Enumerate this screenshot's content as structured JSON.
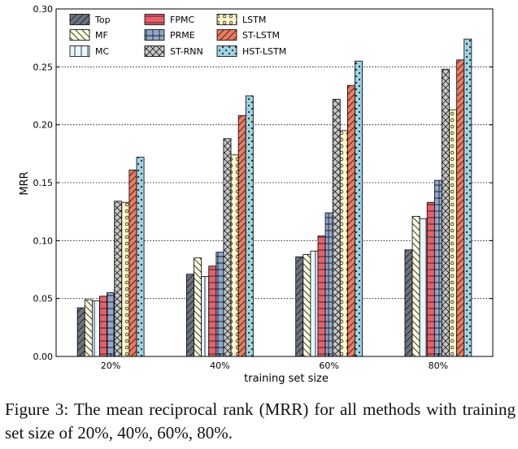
{
  "chart_data": {
    "type": "bar",
    "categories": [
      "20%",
      "40%",
      "60%",
      "80%"
    ],
    "xlabel": "training set size",
    "ylabel": "MRR",
    "ylim": [
      0,
      0.3
    ],
    "yticks": [
      0.0,
      0.05,
      0.1,
      0.15,
      0.2,
      0.25,
      0.3
    ],
    "ytick_labels": [
      "0.00",
      "0.05",
      "0.10",
      "0.15",
      "0.20",
      "0.25",
      "0.30"
    ],
    "grid": "horizontal-dotted",
    "legend_position": "top-left",
    "series": [
      {
        "name": "Top",
        "values": [
          0.042,
          0.071,
          0.086,
          0.092
        ],
        "color": "#6b7280",
        "pattern": "slash"
      },
      {
        "name": "MF",
        "values": [
          0.049,
          0.085,
          0.088,
          0.121
        ],
        "color": "#fffde0",
        "pattern": "backslash"
      },
      {
        "name": "MC",
        "values": [
          0.048,
          0.069,
          0.091,
          0.119
        ],
        "color": "#e8f6ff",
        "pattern": "vertical"
      },
      {
        "name": "FPMC",
        "values": [
          0.052,
          0.078,
          0.104,
          0.133
        ],
        "color": "#e8606a",
        "pattern": "horizontal"
      },
      {
        "name": "PRME",
        "values": [
          0.055,
          0.09,
          0.124,
          0.152
        ],
        "color": "#8fa7cc",
        "pattern": "grid"
      },
      {
        "name": "ST-RNN",
        "values": [
          0.134,
          0.188,
          0.222,
          0.248
        ],
        "color": "#c9c9c9",
        "pattern": "cross"
      },
      {
        "name": "LSTM",
        "values": [
          0.133,
          0.174,
          0.195,
          0.213
        ],
        "color": "#fdf6c8",
        "pattern": "circles"
      },
      {
        "name": "ST-LSTM",
        "values": [
          0.161,
          0.208,
          0.234,
          0.256
        ],
        "color": "#f07a5e",
        "pattern": "slash"
      },
      {
        "name": "HST-LSTM",
        "values": [
          0.172,
          0.225,
          0.255,
          0.274
        ],
        "color": "#9fd3e3",
        "pattern": "dots"
      }
    ]
  },
  "caption": "Figure 3: The mean reciprocal rank (MRR) for all methods with training set size of 20%, 40%, 60%, 80%."
}
